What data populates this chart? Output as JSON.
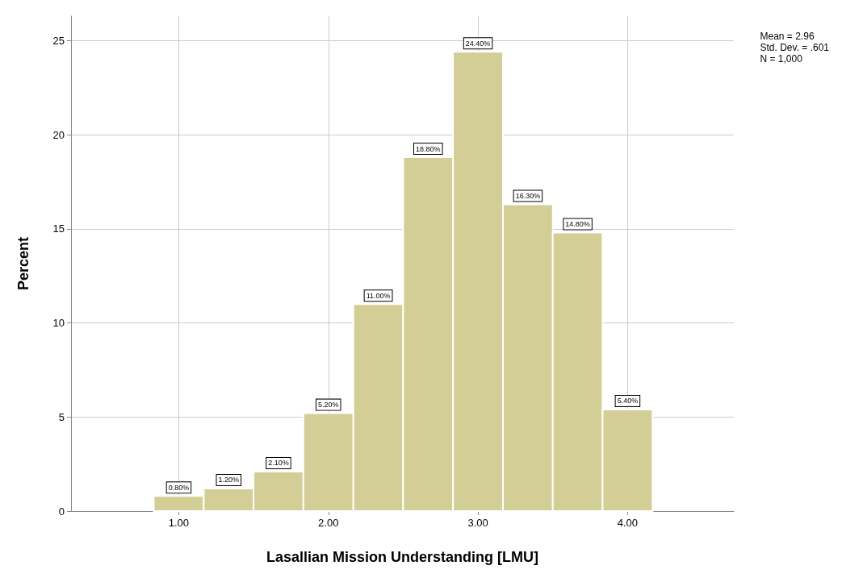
{
  "chart_data": {
    "type": "histogram",
    "xlabel": "Lasallian Mission Understanding [LMU]",
    "ylabel": "Percent",
    "bins": [
      0.833,
      1.167,
      1.5,
      1.833,
      2.167,
      2.5,
      2.833,
      3.167,
      3.5,
      3.833,
      4.167
    ],
    "values": [
      0.8,
      1.2,
      2.1,
      5.2,
      11.0,
      18.8,
      24.4,
      16.3,
      14.8,
      5.4
    ],
    "value_labels": [
      "0.80%",
      "1.20%",
      "2.10%",
      "5.20%",
      "11.00%",
      "18.80%",
      "24.40%",
      "16.30%",
      "14.80%",
      "5.40%"
    ],
    "color": "#d3cd96",
    "xlim": [
      0.28,
      4.71
    ],
    "xticks": [
      {
        "value": 1,
        "label": "1.00"
      },
      {
        "value": 2,
        "label": "2.00"
      },
      {
        "value": 3,
        "label": "3.00"
      },
      {
        "value": 4,
        "label": "4.00"
      }
    ],
    "ylim": [
      0,
      26.3
    ],
    "yticks": [
      0,
      5,
      10,
      15,
      20,
      25
    ],
    "grid": true,
    "annotations": [
      "Mean = 2.96\nStd. Dev. = .601\nN = 1,000"
    ]
  }
}
